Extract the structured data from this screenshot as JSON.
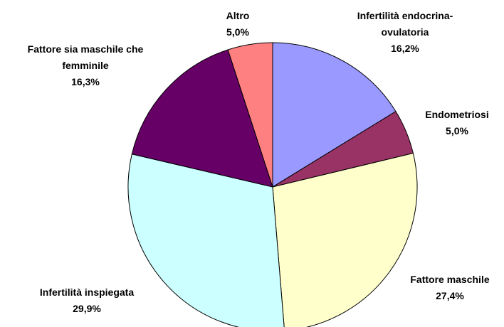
{
  "chart_data": {
    "type": "pie",
    "categories": [
      "Infertilità endocrina-ovulatoria",
      "Endometriosi",
      "Fattore maschile",
      "Infertilità inspiegata",
      "Fattore sia maschile che femminile",
      "Altro"
    ],
    "values": [
      16.2,
      5.0,
      27.4,
      29.9,
      16.3,
      5.0
    ],
    "value_labels": [
      "16,2%",
      "5,0%",
      "27,4%",
      "29,9%",
      "16,3%",
      "5,0%"
    ],
    "colors": [
      "#9999ff",
      "#993366",
      "#ffffcc",
      "#ccffff",
      "#660066",
      "#ff8080"
    ]
  }
}
